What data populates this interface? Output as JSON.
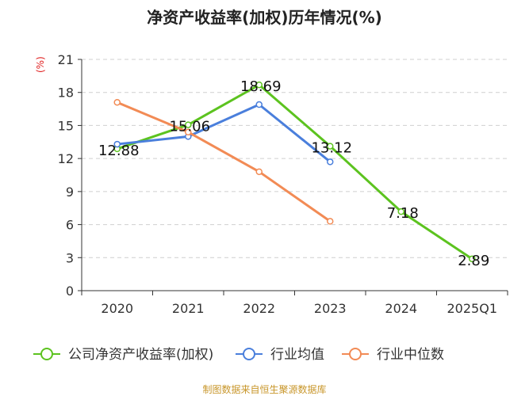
{
  "chart_data": {
    "type": "line",
    "title": "净资产收益率(加权)历年情况(%)",
    "ylabel": "(%)",
    "categories": [
      "2020",
      "2021",
      "2022",
      "2023",
      "2024",
      "2025Q1"
    ],
    "ylim": [
      0,
      21
    ],
    "yticks": [
      0,
      3,
      6,
      9,
      12,
      15,
      18,
      21
    ],
    "grid": true,
    "legend_position": "bottom",
    "series": [
      {
        "name": "公司净资产收益率(加权)",
        "color": "#5cc31f",
        "values": [
          12.88,
          15.06,
          18.69,
          13.12,
          7.18,
          2.89
        ],
        "labels": [
          "12.88",
          "15.06",
          "18.69",
          "13.12",
          "7.18",
          "2.89"
        ]
      },
      {
        "name": "行业均值",
        "color": "#4a7fdc",
        "values": [
          13.3,
          14.0,
          16.9,
          11.7,
          null,
          null
        ]
      },
      {
        "name": "行业中位数",
        "color": "#f28b55",
        "values": [
          17.1,
          14.4,
          10.8,
          6.3,
          null,
          null
        ]
      }
    ]
  },
  "source": "制图数据来自恒生聚源数据库"
}
